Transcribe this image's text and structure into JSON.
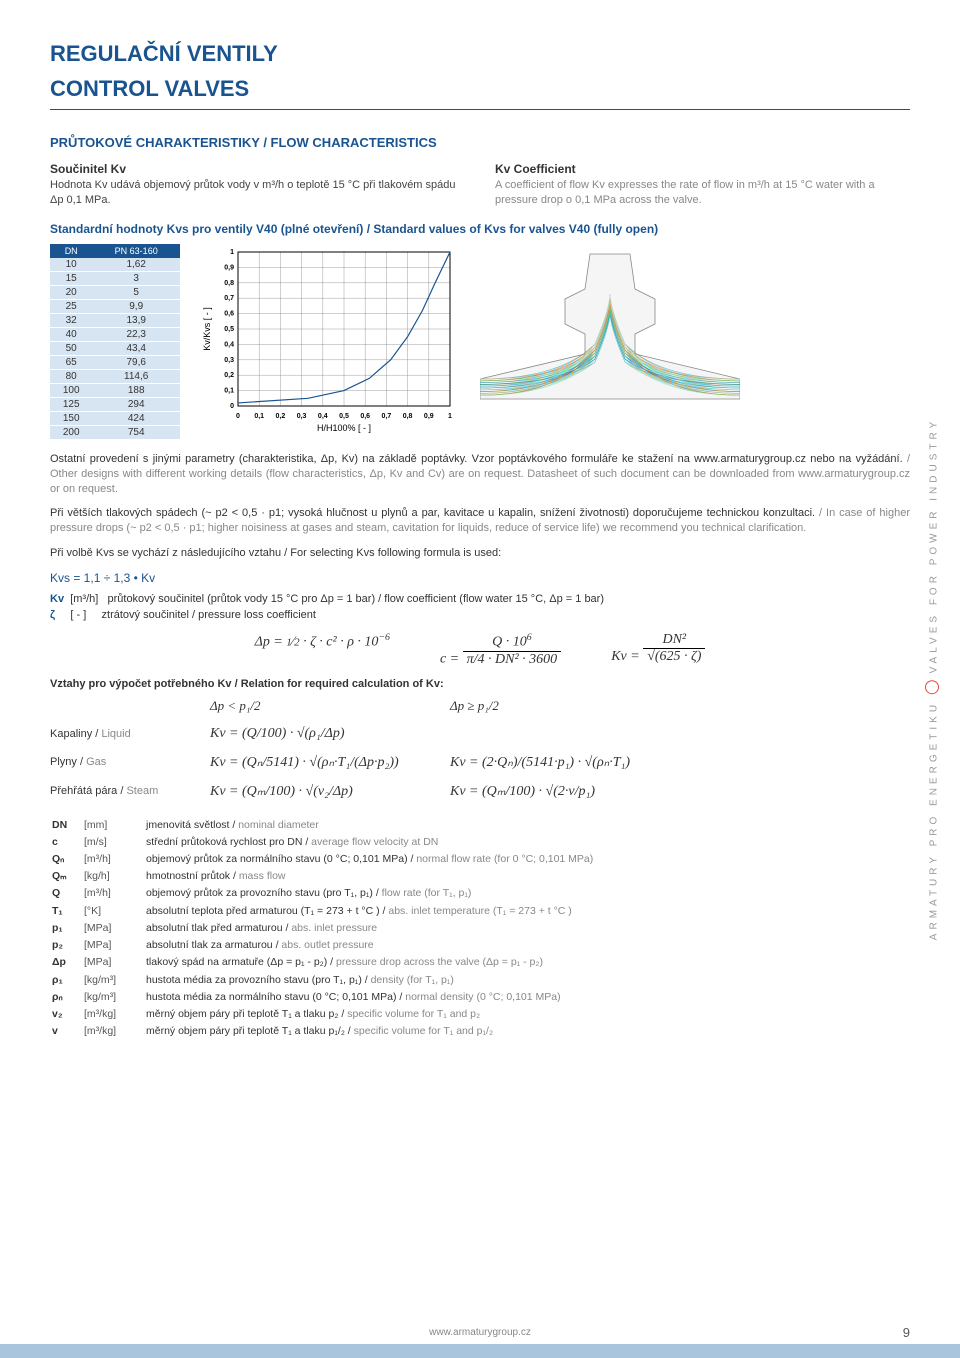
{
  "header": {
    "title_cz": "REGULAČNÍ VENTILY",
    "title_en": "CONTROL VALVES"
  },
  "section1": {
    "heading": "PRŮTOKOVÉ CHARAKTERISTIKY / FLOW CHARACTERISTICS",
    "left_title": "Součinitel Kv",
    "left_body": "Hodnota Kv udává objemový průtok vody v m³/h o teplotě 15 °C při tlakovém spádu Δp 0,1 MPa.",
    "right_title": "Kv Coefficient",
    "right_body": "A coefficient of flow Kv expresses the rate of flow in m³/h at 15 °C water with a pressure drop o 0,1 MPa across the valve."
  },
  "kvs_heading": "Standardní hodnoty Kvs pro ventily V40 (plné otevření) / Standard values of Kvs for valves V40 (fully open)",
  "kvs_table": {
    "col1_header": "DN",
    "col2_header": "PN 63-160",
    "rows": [
      [
        "10",
        "1,62"
      ],
      [
        "15",
        "3"
      ],
      [
        "20",
        "5"
      ],
      [
        "25",
        "9,9"
      ],
      [
        "32",
        "13,9"
      ],
      [
        "40",
        "22,3"
      ],
      [
        "50",
        "43,4"
      ],
      [
        "65",
        "79,6"
      ],
      [
        "80",
        "114,6"
      ],
      [
        "100",
        "188"
      ],
      [
        "125",
        "294"
      ],
      [
        "150",
        "424"
      ],
      [
        "200",
        "754"
      ]
    ]
  },
  "chart": {
    "type": "line",
    "xlabel": "H/H100% [ - ]",
    "ylabel": "Kv/Kvs [ - ]",
    "xlim": [
      0,
      1
    ],
    "ylim": [
      0,
      1
    ],
    "xtick_step": 0.1,
    "ytick_step": 0.1,
    "xticks": [
      "0",
      "0,1",
      "0,2",
      "0,3",
      "0,4",
      "0,5",
      "0,6",
      "0,7",
      "0,8",
      "0,9",
      "1"
    ],
    "yticks": [
      "0",
      "0,1",
      "0,2",
      "0,3",
      "0,4",
      "0,5",
      "0,6",
      "0,7",
      "0,8",
      "0,9",
      "1"
    ],
    "line_color": "#1a5490",
    "grid_color": "#888",
    "axis_color": "#000",
    "background_color": "#ffffff",
    "label_fontsize": 9,
    "tick_fontsize": 7,
    "line_width": 1.2,
    "points": [
      [
        0,
        0.02
      ],
      [
        0.33,
        0.05
      ],
      [
        0.5,
        0.1
      ],
      [
        0.62,
        0.18
      ],
      [
        0.72,
        0.3
      ],
      [
        0.8,
        0.45
      ],
      [
        0.87,
        0.62
      ],
      [
        0.93,
        0.8
      ],
      [
        1,
        1
      ]
    ]
  },
  "cfd_colors": [
    "#00a8e8",
    "#0077b6",
    "#48cae4",
    "#90e0ef",
    "#caf0f8",
    "#e8861c",
    "#f4a261",
    "#7ed957"
  ],
  "para1_black": "Ostatní provedení s jinými parametry (charakteristika, Δp, Kv) na základě poptávky. Vzor poptávkového formuláře ke stažení na www.armaturygroup.cz nebo na vyžádání. ",
  "para1_gray": "/ Other designs with different working details (flow characteristics, Δp, Kv and Cv) are on request. Datasheet of such document can be downloaded from www.armaturygroup.cz or on request.",
  "para2_black": "Při větších tlakových spádech (~ p2 < 0,5 · p1; vysoká hlučnost u plynů a par, kavitace u kapalin, snížení životnosti) doporučujeme technickou konzultaci. ",
  "para2_gray": "/ In case of higher pressure drops (~ p2 < 0,5 · p1; higher noisiness at gases and steam, cavitation for liquids, reduce of service life) we recommend you technical clarification.",
  "para3": "Při volbě Kvs se vychází z následujícího vztahu / For selecting Kvs following formula is used:",
  "kvs_formula": "Kvs = 1,1 ÷ 1,3 • Kv",
  "kv_legend_sym": "Kv",
  "kv_legend_unit": "[m³/h]",
  "kv_legend_desc": "průtokový součinitel (průtok vody 15 °C pro Δp = 1 bar) / flow coefficient (flow water 15 °C, Δp = 1 bar)",
  "zeta_sym": "ζ",
  "zeta_unit": "[ - ]",
  "zeta_desc": "ztrátový součinitel / pressure loss coefficient",
  "formulas_main": {
    "f1": "Δp = ½ · ζ · c² · ρ · 10⁻⁶",
    "f2": "c = (Q · 10⁶) / (π/4 · DN² · 3600)",
    "f3": "Kv = DN² / √(625 · ζ)"
  },
  "relation_title": "Vztahy pro výpočet potřebného Kv / Relation for required calculation of Kv:",
  "cond1": "Δp < p₁/2",
  "cond2": "Δp ≥ p₁/2",
  "rel_rows": [
    {
      "label_cz": "Kapaliny",
      "label_en": "Liquid",
      "f1": "Kv = (Q/100) · √(ρ₁/Δp)",
      "f2": ""
    },
    {
      "label_cz": "Plyny",
      "label_en": "Gas",
      "f1": "Kv = (Qₙ/5141) · √(ρₙ·T₁/(Δp·p₂))",
      "f2": "Kv = (2·Qₙ)/(5141·p₁) · √(ρₙ·T₁)"
    },
    {
      "label_cz": "Přehřátá pára",
      "label_en": "Steam",
      "f1": "Kv = (Qₘ/100) · √(v₂/Δp)",
      "f2": "Kv = (Qₘ/100) · √(2·v/p₁)"
    }
  ],
  "legend": [
    {
      "s": "DN",
      "u": "[mm]",
      "d_cz": "jmenovitá světlost",
      "d_en": "nominal diameter"
    },
    {
      "s": "c",
      "u": "[m/s]",
      "d_cz": "střední průtoková rychlost pro DN",
      "d_en": "average flow velocity at DN"
    },
    {
      "s": "Qₙ",
      "u": "[m³/h]",
      "d_cz": "objemový průtok za normálního stavu (0 °C; 0,101 MPa)",
      "d_en": "normal flow rate (for 0 °C; 0,101 MPa)"
    },
    {
      "s": "Qₘ",
      "u": "[kg/h]",
      "d_cz": "hmotnostní průtok",
      "d_en": "mass flow"
    },
    {
      "s": "Q",
      "u": "[m³/h]",
      "d_cz": "objemový průtok za provozního stavu (pro T₁, p₁)",
      "d_en": "flow rate (for T₁, p₁)"
    },
    {
      "s": "T₁",
      "u": "[°K]",
      "d_cz": "absolutní teplota před armaturou (T₁ = 273 + t °C )",
      "d_en": "abs. inlet temperature  (T₁ = 273 + t °C )"
    },
    {
      "s": "p₁",
      "u": "[MPa]",
      "d_cz": "absolutní tlak před armaturou",
      "d_en": "abs. inlet pressure"
    },
    {
      "s": "p₂",
      "u": "[MPa]",
      "d_cz": "absolutní tlak za armaturou",
      "d_en": "abs. outlet pressure"
    },
    {
      "s": "Δp",
      "u": "[MPa]",
      "d_cz": "tlakový spád na armatuře  (Δp = p₁ - p₂)",
      "d_en": "pressure drop across the valve (Δp = p₁ - p₂)"
    },
    {
      "s": "ρ₁",
      "u": "[kg/m³]",
      "d_cz": "hustota média za provozního stavu (pro T₁, p₁)",
      "d_en": "density (for T₁, p₁)"
    },
    {
      "s": "ρₙ",
      "u": "[kg/m³]",
      "d_cz": "hustota média za normálního stavu (0 °C; 0,101 MPa)",
      "d_en": "normal density (0 °C; 0,101 MPa)"
    },
    {
      "s": "v₂",
      "u": "[m³/kg]",
      "d_cz": "měrný objem páry při teplotě T₁ a tlaku p₂",
      "d_en": "specific volume for T₁ and p₂"
    },
    {
      "s": "v",
      "u": "[m³/kg]",
      "d_cz": "měrný objem páry při teplotě T₁ a tlaku p₁/₂",
      "d_en": "specific volume for T₁ and p₁/₂"
    }
  ],
  "side_text_left": "ARMATURY PRO ENERGETIKU",
  "side_text_right": "VALVES FOR POWER INDUSTRY",
  "footer_url": "www.armaturygroup.cz",
  "page_number": "9"
}
